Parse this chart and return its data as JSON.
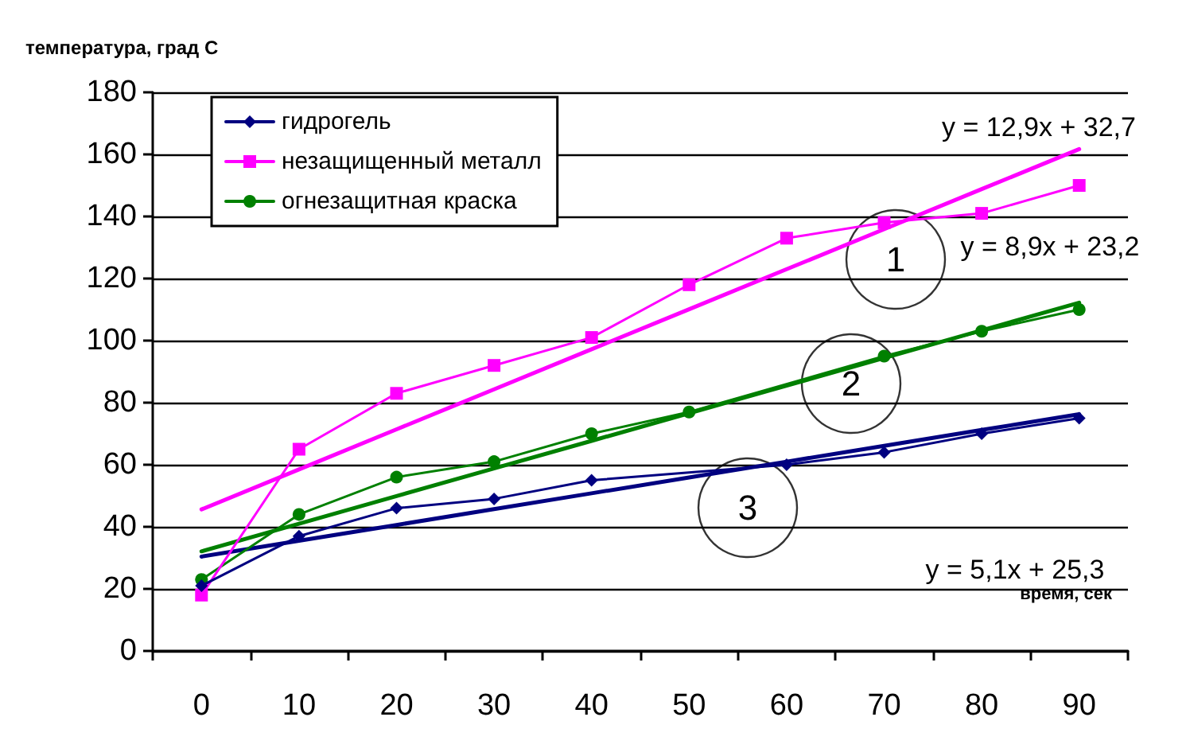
{
  "chart_data": {
    "type": "line",
    "ylabel": "температура, град С",
    "xlabel": "время, сек",
    "categories": [
      "0",
      "10",
      "20",
      "30",
      "40",
      "50",
      "60",
      "70",
      "80",
      "90"
    ],
    "ylim": [
      0,
      180
    ],
    "yticks": [
      0,
      20,
      40,
      60,
      80,
      100,
      120,
      140,
      160,
      180
    ],
    "grid": "y",
    "legend": "top left",
    "series": [
      {
        "name": "гидрогель",
        "color": "#000080",
        "marker": "diamond",
        "values": [
          21,
          37,
          46,
          49,
          55,
          null,
          60,
          64,
          70,
          75
        ]
      },
      {
        "name": "незащищенный металл",
        "color": "#ff00ff",
        "marker": "square",
        "values": [
          18,
          65,
          83,
          92,
          101,
          118,
          133,
          138,
          141,
          150
        ]
      },
      {
        "name": "огнезащитная краска",
        "color": "#008000",
        "marker": "circle",
        "values": [
          23,
          44,
          56,
          61,
          70,
          77,
          null,
          95,
          103,
          110
        ]
      },
      {
        "color": "#ff00ff",
        "marker": "none",
        "values": [
          45.6,
          58.5,
          71.4,
          84.3,
          97.2,
          110.1,
          123.0,
          135.9,
          148.8,
          161.7
        ]
      },
      {
        "color": "#008000",
        "marker": "none",
        "values": [
          32.1,
          41.0,
          49.9,
          58.8,
          67.7,
          76.6,
          85.5,
          94.4,
          103.3,
          112.2
        ]
      },
      {
        "color": "#000080",
        "marker": "none",
        "values": [
          30.4,
          35.5,
          40.6,
          45.7,
          50.8,
          55.9,
          61.0,
          66.1,
          71.2,
          76.3
        ]
      }
    ],
    "annotations": [
      "y = 12,9x + 32,7",
      "y = 8,9x + 23,2",
      "y = 5,1x + 25,3",
      "1",
      "2",
      "3"
    ]
  }
}
